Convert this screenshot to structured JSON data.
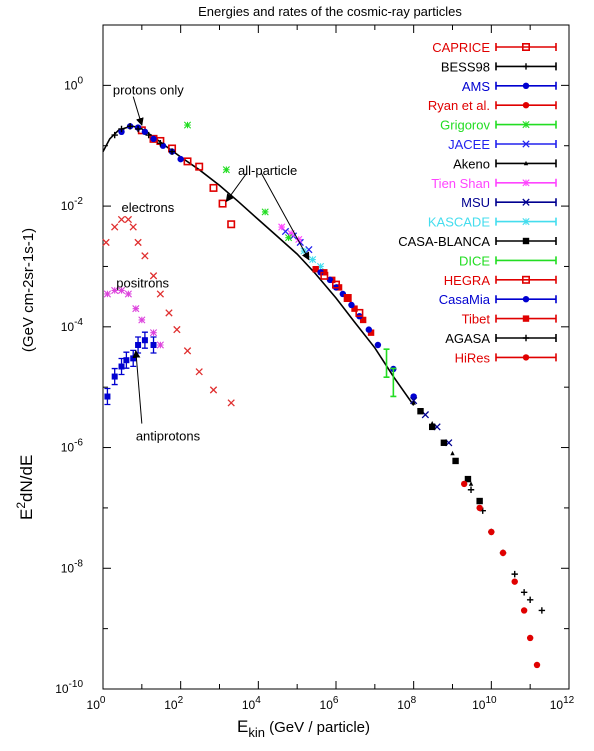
{
  "chart_data": {
    "type": "scatter",
    "title": "Energies and rates of the cosmic-ray particles",
    "x_log": true,
    "y_log": true,
    "xlim": [
      1,
      1000000000000.0
    ],
    "ylim": [
      1e-10,
      10
    ],
    "xlabel": {
      "base": "E",
      "sub": "kin",
      "rest": " (GeV / particle)"
    },
    "ylabel": {
      "base": "E",
      "sup": "2",
      "rest": "dN/dE",
      "unit": "(GeV cm-2sr-1s-1)"
    },
    "x_ticks": [
      {
        "label": "10",
        "exp": "0",
        "value": 1
      },
      {
        "label": "10",
        "exp": "2",
        "value": 100
      },
      {
        "label": "10",
        "exp": "4",
        "value": 10000
      },
      {
        "label": "10",
        "exp": "6",
        "value": 1000000
      },
      {
        "label": "10",
        "exp": "8",
        "value": 100000000
      },
      {
        "label": "10",
        "exp": "10",
        "value": 10000000000
      },
      {
        "label": "10",
        "exp": "12",
        "value": 1000000000000
      }
    ],
    "y_ticks": [
      {
        "label": "10",
        "exp": "0",
        "value": 1
      },
      {
        "label": "10",
        "exp": "-2",
        "value": 0.01
      },
      {
        "label": "10",
        "exp": "-4",
        "value": 0.0001
      },
      {
        "label": "10",
        "exp": "-6",
        "value": 1e-06
      },
      {
        "label": "10",
        "exp": "-8",
        "value": 1e-08
      },
      {
        "label": "10",
        "exp": "-10",
        "value": 1e-10
      }
    ],
    "annotations": [
      {
        "text": "protons only",
        "x": 1.8,
        "y": 0.7
      },
      {
        "text": "all-particle",
        "x": 3000,
        "y": 0.033
      },
      {
        "text": "electrons",
        "x": 3,
        "y": 0.008
      },
      {
        "text": "positrons",
        "x": 2.2,
        "y": 0.00045
      },
      {
        "text": "antiprotons",
        "x": 7,
        "y": 1.3e-06
      }
    ],
    "arrows": [
      {
        "name": "arrow-protons-only",
        "from": [
          6,
          0.65
        ],
        "to": [
          10,
          0.22
        ]
      },
      {
        "name": "arrow-all-particle-1",
        "from": [
          5000,
          0.035
        ],
        "to": [
          1500,
          0.012
        ]
      },
      {
        "name": "arrow-all-particle-2",
        "from": [
          12000,
          0.035
        ],
        "to": [
          200000,
          0.0013
        ]
      },
      {
        "name": "arrow-antiprotons",
        "from": [
          10,
          2.5e-06
        ],
        "to": [
          7,
          4e-05
        ]
      }
    ],
    "legend": {
      "position": "top-right",
      "entries": [
        {
          "name": "CAPRICE",
          "color": "#e00000",
          "marker": "square-open"
        },
        {
          "name": "BESS98",
          "color": "#000000",
          "marker": "plus"
        },
        {
          "name": "AMS",
          "color": "#0000d0",
          "marker": "circle-filled"
        },
        {
          "name": "Ryan et al.",
          "color": "#e00000",
          "marker": "circle-filled"
        },
        {
          "name": "Grigorov",
          "color": "#22dd22",
          "marker": "star"
        },
        {
          "name": "JACEE",
          "color": "#2222ee",
          "marker": "cross"
        },
        {
          "name": "Akeno",
          "color": "#000000",
          "marker": "triangle-small"
        },
        {
          "name": "Tien Shan",
          "color": "#ff44ff",
          "marker": "star"
        },
        {
          "name": "MSU",
          "color": "#000090",
          "marker": "cross"
        },
        {
          "name": "KASCADE",
          "color": "#44ddee",
          "marker": "star"
        },
        {
          "name": "CASA-BLANCA",
          "color": "#000000",
          "marker": "square-filled"
        },
        {
          "name": "DICE",
          "color": "#22dd22",
          "marker": "none"
        },
        {
          "name": "HEGRA",
          "color": "#e00000",
          "marker": "square-open"
        },
        {
          "name": "CasaMia",
          "color": "#0000d0",
          "marker": "circle-filled"
        },
        {
          "name": "Tibet",
          "color": "#e00000",
          "marker": "square-filled"
        },
        {
          "name": "AGASA",
          "color": "#000000",
          "marker": "plus"
        },
        {
          "name": "HiRes",
          "color": "#e00000",
          "marker": "circle-filled"
        }
      ]
    },
    "curves": [
      {
        "name": "all-particle",
        "color": "#000000",
        "points": [
          [
            1,
            0.08
          ],
          [
            1.5,
            0.13
          ],
          [
            2.5,
            0.18
          ],
          [
            4,
            0.2
          ],
          [
            6,
            0.21
          ],
          [
            10,
            0.19
          ],
          [
            20,
            0.14
          ],
          [
            50,
            0.09
          ],
          [
            100,
            0.065
          ],
          [
            300,
            0.04
          ],
          [
            1000,
            0.022
          ],
          [
            3000,
            0.012
          ],
          [
            10000,
            0.006
          ],
          [
            30000,
            0.0032
          ],
          [
            100000,
            0.0016
          ],
          [
            300000,
            0.00075
          ],
          [
            1000000,
            0.0003
          ],
          [
            3000000,
            0.00012
          ],
          [
            10000000,
            4.5e-05
          ],
          [
            30000000,
            1.5e-05
          ],
          [
            100000000,
            5e-06
          ]
        ]
      }
    ],
    "series": [
      {
        "name": "electrons",
        "color": "#e03030",
        "marker": "cross",
        "points": [
          [
            1.2,
            0.0025
          ],
          [
            2,
            0.0045
          ],
          [
            3,
            0.006
          ],
          [
            4.5,
            0.006
          ],
          [
            6,
            0.0045
          ],
          [
            8,
            0.0025
          ],
          [
            12,
            0.0015
          ],
          [
            20,
            0.0007
          ],
          [
            30,
            0.00035
          ],
          [
            50,
            0.00017
          ],
          [
            80,
            9e-05
          ],
          [
            150,
            4e-05
          ],
          [
            300,
            1.8e-05
          ],
          [
            700,
            9e-06
          ],
          [
            2000,
            5.5e-06
          ]
        ]
      },
      {
        "name": "positrons",
        "color": "#dd44dd",
        "marker": "star",
        "points": [
          [
            1.3,
            0.00035
          ],
          [
            2,
            0.0004
          ],
          [
            3,
            0.0004
          ],
          [
            4.5,
            0.00035
          ],
          [
            7,
            0.0002
          ],
          [
            10,
            0.00013
          ],
          [
            20,
            8e-05
          ],
          [
            30,
            5e-05
          ]
        ]
      },
      {
        "name": "antiprotons",
        "color": "#0000d0",
        "marker": "square-errbar",
        "points": [
          [
            1.3,
            7e-06
          ],
          [
            2,
            1.5e-05
          ],
          [
            3,
            2.2e-05
          ],
          [
            4,
            2.8e-05
          ],
          [
            6,
            3e-05
          ],
          [
            8,
            5e-05
          ],
          [
            12,
            6e-05
          ],
          [
            20,
            5e-05
          ]
        ]
      },
      {
        "name": "CAPRICE",
        "color": "#e00000",
        "marker": "square-open",
        "points": [
          [
            10,
            0.18
          ],
          [
            20,
            0.13
          ],
          [
            30,
            0.12
          ],
          [
            60,
            0.09
          ],
          [
            150,
            0.055
          ],
          [
            300,
            0.045
          ],
          [
            700,
            0.02
          ],
          [
            1200,
            0.011
          ],
          [
            2000,
            0.005
          ]
        ]
      },
      {
        "name": "AMS",
        "color": "#0000d0",
        "marker": "circle-filled",
        "points": [
          [
            3,
            0.17
          ],
          [
            5,
            0.21
          ],
          [
            8,
            0.2
          ],
          [
            12,
            0.17
          ],
          [
            20,
            0.13
          ],
          [
            35,
            0.1
          ],
          [
            60,
            0.08
          ],
          [
            100,
            0.06
          ]
        ]
      },
      {
        "name": "BESS98",
        "color": "#000000",
        "marker": "plus",
        "points": [
          [
            2,
            0.15
          ],
          [
            3,
            0.19
          ],
          [
            5,
            0.21
          ],
          [
            8,
            0.19
          ],
          [
            15,
            0.15
          ],
          [
            30,
            0.11
          ],
          [
            60,
            0.08
          ]
        ]
      },
      {
        "name": "JACEE",
        "color": "#2222ee",
        "marker": "cross",
        "points": [
          [
            50000,
            0.0038
          ],
          [
            80000,
            0.0032
          ],
          [
            120000,
            0.0025
          ],
          [
            200000,
            0.0019
          ]
        ]
      },
      {
        "name": "Tien Shan",
        "color": "#ff44ff",
        "marker": "star",
        "points": [
          [
            40000,
            0.0045
          ],
          [
            70000,
            0.0035
          ],
          [
            110000,
            0.0028
          ]
        ]
      },
      {
        "name": "KASCADE",
        "color": "#44ddee",
        "marker": "star",
        "points": [
          [
            150000,
            0.0018
          ],
          [
            250000,
            0.0013
          ],
          [
            400000,
            0.001
          ]
        ]
      },
      {
        "name": "Grigorov",
        "color": "#22dd22",
        "marker": "star",
        "points": [
          [
            150,
            0.22
          ],
          [
            1500,
            0.04
          ],
          [
            15000,
            0.008
          ],
          [
            60000,
            0.003
          ]
        ]
      },
      {
        "name": "Tibet",
        "color": "#e00000",
        "marker": "square-filled",
        "points": [
          [
            300000,
            0.0009
          ],
          [
            500000,
            0.0008
          ],
          [
            800000,
            0.0006
          ],
          [
            1200000,
            0.00045
          ],
          [
            2000000,
            0.0003
          ],
          [
            3000000,
            0.0002
          ],
          [
            5000000,
            0.00013
          ],
          [
            8000000,
            8e-05
          ]
        ]
      },
      {
        "name": "CasaMia",
        "color": "#0000d0",
        "marker": "circle-filled",
        "points": [
          [
            400000,
            0.0008
          ],
          [
            700000,
            0.0006
          ],
          [
            1000000,
            0.00045
          ],
          [
            1500000,
            0.00035
          ],
          [
            2500000,
            0.00023
          ],
          [
            4000000,
            0.00015
          ],
          [
            7000000,
            9e-05
          ],
          [
            12000000,
            5e-05
          ],
          [
            30000000,
            2e-05
          ],
          [
            100000000,
            7e-06
          ]
        ]
      },
      {
        "name": "HEGRA",
        "color": "#e00000",
        "marker": "square-open",
        "points": [
          [
            500000,
            0.0007
          ],
          [
            1000000,
            0.0005
          ],
          [
            2000000,
            0.0003
          ],
          [
            4000000,
            0.00017
          ]
        ]
      },
      {
        "name": "DICE",
        "color": "#22dd22",
        "marker": "errbar",
        "points": [
          [
            20000000,
            2.5e-05
          ],
          [
            30000000,
            1.2e-05
          ]
        ]
      },
      {
        "name": "MSU",
        "color": "#000090",
        "marker": "cross",
        "points": [
          [
            100000000,
            6e-06
          ],
          [
            200000000,
            3.5e-06
          ],
          [
            400000000,
            2.2e-06
          ],
          [
            800000000,
            1.2e-06
          ]
        ]
      },
      {
        "name": "CASA-BLANCA",
        "color": "#000000",
        "marker": "square-filled",
        "points": [
          [
            150000000,
            4e-06
          ],
          [
            300000000,
            2.2e-06
          ],
          [
            600000000,
            1.2e-06
          ],
          [
            1200000000,
            6e-07
          ],
          [
            2500000000,
            3e-07
          ],
          [
            5000000000,
            1.3e-07
          ]
        ]
      },
      {
        "name": "Akeno",
        "color": "#000000",
        "marker": "triangle-small",
        "points": [
          [
            100000000,
            5.5e-06
          ],
          [
            300000000,
            2.5e-06
          ],
          [
            1000000000,
            8e-07
          ],
          [
            3000000000,
            2.5e-07
          ]
        ]
      },
      {
        "name": "AGASA",
        "color": "#000000",
        "marker": "plus",
        "points": [
          [
            3000000000,
            2e-07
          ],
          [
            6000000000,
            9e-08
          ],
          [
            10000000000,
            4e-08
          ],
          [
            20000000000,
            1.8e-08
          ],
          [
            40000000000,
            8e-09
          ],
          [
            70000000000,
            4e-09
          ],
          [
            100000000000,
            3e-09
          ],
          [
            200000000000,
            2e-09
          ]
        ]
      },
      {
        "name": "HiRes",
        "color": "#e00000",
        "marker": "circle-filled",
        "points": [
          [
            2000000000,
            2.5e-07
          ],
          [
            5000000000,
            1e-07
          ],
          [
            10000000000,
            4e-08
          ],
          [
            20000000000,
            1.8e-08
          ],
          [
            40000000000,
            6e-09
          ],
          [
            70000000000,
            2e-09
          ],
          [
            100000000000,
            7e-10
          ],
          [
            150000000000,
            2.5e-10
          ]
        ]
      }
    ]
  }
}
